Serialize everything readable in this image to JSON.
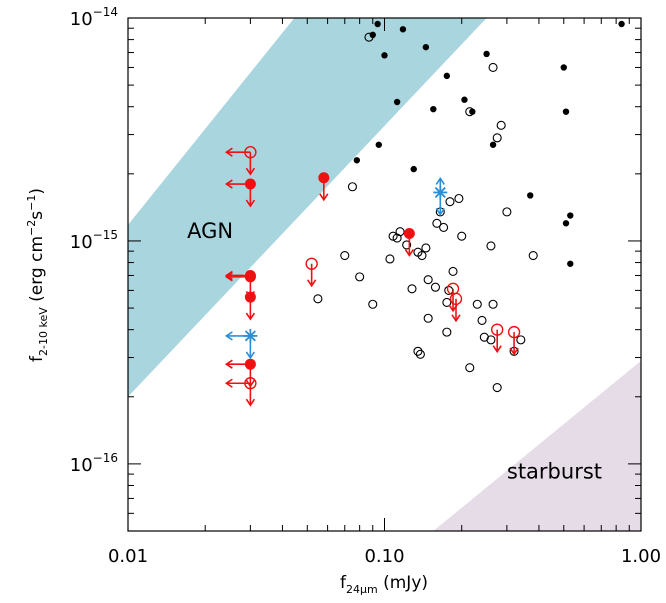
{
  "chart_data": {
    "type": "scatter",
    "xscale": "log",
    "yscale": "log",
    "xlim": [
      0.01,
      1.0
    ],
    "ylim": [
      5e-17,
      1e-14
    ],
    "xlabel": {
      "main": "f",
      "sub": "24μm",
      "unit": "(mJy)"
    },
    "ylabel": {
      "main": "f",
      "sub": "2-10 keV",
      "unit": "(erg cm",
      "sup1": "−2",
      "mid": "s",
      "sup2": "−1",
      "end": ")"
    },
    "xticks": [
      {
        "value": 0.01,
        "label": "0.01"
      },
      {
        "value": 0.1,
        "label": "0.10"
      },
      {
        "value": 1.0,
        "label": "1.00"
      }
    ],
    "yticks": [
      {
        "value": 1e-16,
        "mant": "10",
        "exp": "−16"
      },
      {
        "value": 1e-15,
        "mant": "10",
        "exp": "−15"
      },
      {
        "value": 1e-14,
        "mant": "10",
        "exp": "−14"
      }
    ],
    "regions": [
      {
        "name": "AGN",
        "color": "#a9d5de",
        "lower": [
          [
            0.01,
            2e-16
          ],
          [
            0.25,
            1e-14
          ]
        ],
        "upper": [
          [
            0.01,
            1.18e-15
          ],
          [
            0.0445,
            1e-14
          ]
        ],
        "label_at": [
          0.017,
          1.03e-15
        ]
      },
      {
        "name": "starburst",
        "color": "#e6dce8",
        "lower": [
          [
            0.155,
            5e-17
          ],
          [
            1.0,
            2.9e-16
          ]
        ],
        "label_at": [
          0.3,
          8.6e-17
        ]
      }
    ],
    "colors": {
      "black": "#000000",
      "red": "#ee1111",
      "blue": "#2b8fd6"
    },
    "series": [
      {
        "style": "filled-black",
        "points": [
          [
            0.094,
            9.4e-15
          ],
          [
            0.118,
            8.9e-15
          ],
          [
            0.09,
            8.4e-15
          ],
          [
            0.145,
            7.4e-15
          ],
          [
            0.25,
            6.9e-15
          ],
          [
            0.1,
            6.8e-15
          ],
          [
            0.175,
            5.5e-15
          ],
          [
            0.205,
            4.3e-15
          ],
          [
            0.112,
            4.2e-15
          ],
          [
            0.155,
            3.9e-15
          ],
          [
            0.22,
            3.8e-15
          ],
          [
            0.5,
            6e-15
          ],
          [
            0.51,
            3.8e-15
          ],
          [
            0.84,
            9.4e-15
          ],
          [
            0.095,
            2.7e-15
          ],
          [
            0.265,
            2.7e-15
          ],
          [
            0.078,
            2.3e-15
          ],
          [
            0.13,
            2.1e-15
          ],
          [
            0.37,
            1.6e-15
          ],
          [
            0.53,
            1.3e-15
          ],
          [
            0.51,
            1.2e-15
          ],
          [
            0.53,
            7.9e-16
          ]
        ]
      },
      {
        "style": "open-black",
        "points": [
          [
            0.087,
            8.2e-15
          ],
          [
            0.265,
            6e-15
          ],
          [
            0.215,
            3.8e-15
          ],
          [
            0.285,
            3.3e-15
          ],
          [
            0.275,
            2.9e-15
          ],
          [
            0.075,
            1.75e-15
          ],
          [
            0.18,
            1.5e-15
          ],
          [
            0.195,
            1.55e-15
          ],
          [
            0.165,
            1.35e-15
          ],
          [
            0.3,
            1.35e-15
          ],
          [
            0.16,
            1.2e-15
          ],
          [
            0.17,
            1.15e-15
          ],
          [
            0.115,
            1.1e-15
          ],
          [
            0.108,
            1.05e-15
          ],
          [
            0.112,
            1.03e-15
          ],
          [
            0.2,
            1.05e-15
          ],
          [
            0.122,
            9.6e-16
          ],
          [
            0.26,
            9.5e-16
          ],
          [
            0.145,
            9.3e-16
          ],
          [
            0.135,
            8.9e-16
          ],
          [
            0.14,
            8.6e-16
          ],
          [
            0.105,
            8.3e-16
          ],
          [
            0.07,
            8.6e-16
          ],
          [
            0.38,
            8.6e-16
          ],
          [
            0.185,
            7.3e-16
          ],
          [
            0.08,
            6.9e-16
          ],
          [
            0.148,
            6.7e-16
          ],
          [
            0.158,
            6.2e-16
          ],
          [
            0.128,
            6.1e-16
          ],
          [
            0.178,
            6e-16
          ],
          [
            0.175,
            5.3e-16
          ],
          [
            0.23,
            5.2e-16
          ],
          [
            0.265,
            5.2e-16
          ],
          [
            0.24,
            4.4e-16
          ],
          [
            0.09,
            5.2e-16
          ],
          [
            0.148,
            4.5e-16
          ],
          [
            0.055,
            5.5e-16
          ],
          [
            0.175,
            3.9e-16
          ],
          [
            0.245,
            3.7e-16
          ],
          [
            0.26,
            3.6e-16
          ],
          [
            0.34,
            3.6e-16
          ],
          [
            0.135,
            3.2e-16
          ],
          [
            0.138,
            3.1e-16
          ],
          [
            0.32,
            3.2e-16
          ],
          [
            0.215,
            2.7e-16
          ],
          [
            0.275,
            2.2e-16
          ]
        ]
      },
      {
        "style": "filled-red",
        "points": [
          [
            0.03,
            1.8e-15
          ],
          [
            0.058,
            1.92e-15
          ],
          [
            0.125,
            1.08e-15
          ],
          [
            0.03,
            7e-16
          ],
          [
            0.03,
            6.9e-16
          ],
          [
            0.03,
            5.6e-16
          ],
          [
            0.03,
            2.8e-16
          ]
        ],
        "down": [
          true,
          true,
          true,
          true,
          false,
          true,
          true
        ],
        "left": [
          true,
          false,
          false,
          true,
          true,
          false,
          true
        ]
      },
      {
        "style": "open-red",
        "points": [
          [
            0.03,
            2.5e-15
          ],
          [
            0.052,
            7.9e-16
          ],
          [
            0.185,
            6.1e-16
          ],
          [
            0.19,
            5.5e-16
          ],
          [
            0.275,
            4e-16
          ],
          [
            0.32,
            3.9e-16
          ],
          [
            0.03,
            2.3e-16
          ]
        ],
        "down": [
          true,
          true,
          true,
          true,
          true,
          true,
          true
        ],
        "left": [
          true,
          false,
          false,
          false,
          false,
          false,
          true
        ]
      },
      {
        "style": "star-blue",
        "points": [
          [
            0.165,
            1.65e-15
          ],
          [
            0.03,
            3.75e-16
          ]
        ],
        "up": [
          true,
          false
        ],
        "down": [
          true,
          true
        ],
        "left": [
          false,
          true
        ]
      }
    ]
  }
}
